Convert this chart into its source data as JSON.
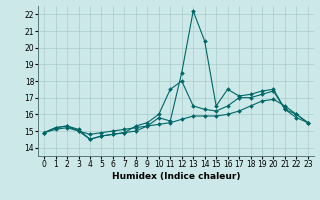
{
  "title": "",
  "xlabel": "Humidex (Indice chaleur)",
  "ylabel": "",
  "bg_color": "#cce8e8",
  "grid_color": "#aacccc",
  "line_color": "#006666",
  "xlim": [
    -0.5,
    23.5
  ],
  "ylim": [
    13.5,
    22.5
  ],
  "yticks": [
    14,
    15,
    16,
    17,
    18,
    19,
    20,
    21,
    22
  ],
  "xtick_labels": [
    "0",
    "1",
    "2",
    "3",
    "4",
    "5",
    "6",
    "7",
    "8",
    "9",
    "10",
    "11",
    "12",
    "13",
    "14",
    "15",
    "16",
    "17",
    "18",
    "19",
    "20",
    "21",
    "22",
    "23"
  ],
  "series1": [
    14.9,
    15.2,
    15.3,
    15.1,
    14.5,
    14.7,
    14.8,
    14.9,
    15.0,
    15.3,
    15.8,
    15.6,
    18.5,
    22.2,
    20.4,
    16.5,
    17.5,
    17.1,
    17.2,
    17.4,
    17.5,
    16.3,
    16.0,
    15.5
  ],
  "series2": [
    14.9,
    15.2,
    15.3,
    15.0,
    14.5,
    14.7,
    14.8,
    14.9,
    15.3,
    15.5,
    16.0,
    17.5,
    18.0,
    16.5,
    16.3,
    16.2,
    16.5,
    17.0,
    17.0,
    17.2,
    17.4,
    16.3,
    15.8,
    15.5
  ],
  "series3": [
    14.9,
    15.1,
    15.2,
    15.0,
    14.8,
    14.9,
    15.0,
    15.1,
    15.2,
    15.3,
    15.4,
    15.5,
    15.7,
    15.9,
    15.9,
    15.9,
    16.0,
    16.2,
    16.5,
    16.8,
    16.9,
    16.5,
    16.0,
    15.5
  ],
  "marker_size": 2.0,
  "linewidth": 0.8,
  "xlabel_fontsize": 6.5,
  "tick_fontsize": 5.5
}
